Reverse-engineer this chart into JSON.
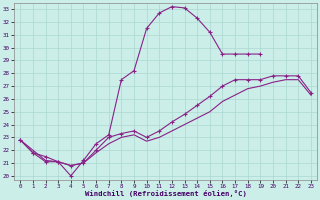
{
  "xlabel": "Windchill (Refroidissement éolien,°C)",
  "bg_color": "#cceee8",
  "line_color": "#882288",
  "grid_color": "#aad8d0",
  "xlim": [
    -0.5,
    23.5
  ],
  "ylim": [
    19.7,
    33.5
  ],
  "xticks": [
    0,
    1,
    2,
    3,
    4,
    5,
    6,
    7,
    8,
    9,
    10,
    11,
    12,
    13,
    14,
    15,
    16,
    17,
    18,
    19,
    20,
    21,
    22,
    23
  ],
  "yticks": [
    20,
    21,
    22,
    23,
    24,
    25,
    26,
    27,
    28,
    29,
    30,
    31,
    32,
    33
  ],
  "line1_x": [
    0,
    1,
    2,
    3,
    4,
    5,
    6,
    7,
    8,
    9,
    10,
    11,
    12,
    13,
    14,
    15,
    16,
    17,
    18,
    19
  ],
  "line1_y": [
    22.8,
    21.8,
    21.1,
    21.1,
    20.0,
    21.2,
    22.5,
    23.2,
    27.5,
    28.2,
    31.5,
    32.7,
    33.2,
    33.1,
    32.3,
    31.2,
    29.5,
    29.5,
    29.5,
    29.5
  ],
  "line2_x": [
    0,
    1,
    2,
    3,
    4,
    5,
    6,
    7,
    8,
    9,
    10,
    11,
    12,
    13,
    14,
    15,
    16,
    17,
    18,
    19,
    20,
    21,
    22,
    23
  ],
  "line2_y": [
    22.8,
    21.8,
    21.5,
    21.1,
    20.8,
    21.0,
    22.0,
    23.0,
    23.3,
    23.5,
    23.0,
    23.5,
    24.2,
    24.8,
    25.5,
    26.2,
    27.0,
    27.5,
    27.5,
    27.5,
    27.8,
    27.8,
    27.8,
    26.5
  ],
  "line3_x": [
    0,
    2,
    3,
    4,
    5,
    6,
    7,
    8,
    9,
    10,
    11,
    12,
    13,
    14,
    15,
    16,
    17,
    18,
    19,
    20,
    21,
    22,
    23
  ],
  "line3_y": [
    22.8,
    21.2,
    21.1,
    20.8,
    21.0,
    21.8,
    22.5,
    23.0,
    23.2,
    22.7,
    23.0,
    23.5,
    24.0,
    24.5,
    25.0,
    25.8,
    26.3,
    26.8,
    27.0,
    27.3,
    27.5,
    27.5,
    26.3
  ]
}
